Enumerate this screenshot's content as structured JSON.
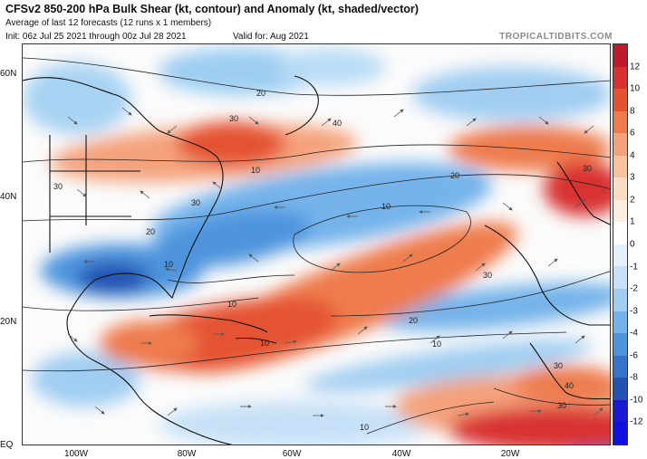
{
  "header": {
    "title": "CFSv2 850-200 hPa Bulk Shear (kt, contour) and Anomaly (kt, shaded/vector)",
    "subtitle": "Average of last 12 forecasts (12 runs x 1 members)",
    "init": "Init: 06z Jul 25 2021 through 00z Jul 28 2021",
    "valid": "Valid for: Aug 2021",
    "brand": "TROPICALTIDBITS.COM"
  },
  "axes": {
    "lat_labels": [
      "60N",
      "40N",
      "20N",
      "EQ"
    ],
    "lon_labels": [
      "100W",
      "80W",
      "60W",
      "40W",
      "20W"
    ]
  },
  "contour_labels": [
    "20",
    "30",
    "40",
    "10",
    "30",
    "20",
    "30",
    "10",
    "20",
    "30",
    "10",
    "10",
    "30",
    "20",
    "10",
    "10",
    "30",
    "30",
    "40",
    "10"
  ],
  "colorbar": {
    "ticks": [
      "12",
      "10",
      "8",
      "6",
      "4",
      "3",
      "2",
      "1",
      "0",
      "-1",
      "-2",
      "-3",
      "-4",
      "-6",
      "-8",
      "-10",
      "-12"
    ],
    "colors": [
      "#be1a2b",
      "#d83030",
      "#e45232",
      "#ee7b4d",
      "#f4a27b",
      "#f8c29f",
      "#fbdcc4",
      "#fdeee2",
      "#ffffff",
      "#e5f0fb",
      "#c6e1f7",
      "#a0cdf1",
      "#74b3ea",
      "#4e94dd",
      "#3673cc",
      "#2352b3",
      "#1a1ad6",
      "#1010e0"
    ]
  }
}
